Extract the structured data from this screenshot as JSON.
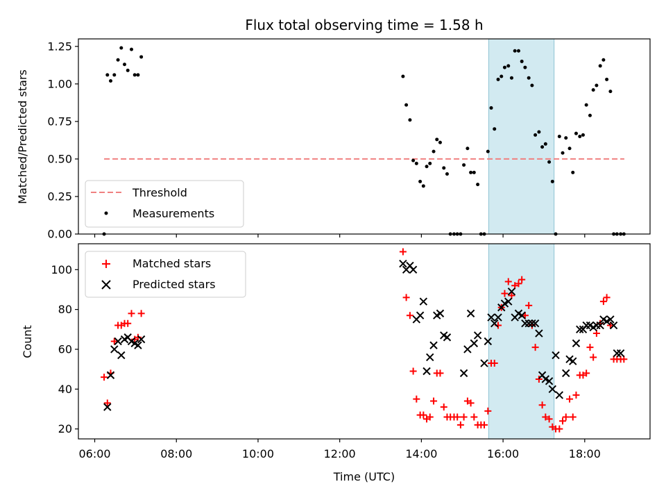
{
  "colors": {
    "threshold": "#f08080",
    "measurements": "#000000",
    "matched": "#ff0000",
    "predicted": "#000000",
    "highlight": "#add8e6"
  },
  "chart_data": [
    {
      "type": "scatter",
      "title": "Flux total observing time = 1.58 h",
      "xlabel": "",
      "ylabel": "Matched/Predicted stars",
      "xlim": [
        5.6,
        19.6
      ],
      "ylim": [
        0,
        1.3
      ],
      "x_ticks": [
        6,
        8,
        10,
        12,
        14,
        16,
        18
      ],
      "y_ticks": [
        0.0,
        0.25,
        0.5,
        0.75,
        1.0,
        1.25
      ],
      "y_tick_labels": [
        "0.00",
        "0.25",
        "0.50",
        "0.75",
        "1.00",
        "1.25"
      ],
      "highlight_span": [
        15.65,
        17.25
      ],
      "legend": {
        "placement": "lower-left",
        "entries": [
          "Threshold",
          "Measurements"
        ]
      },
      "threshold": {
        "name": "Threshold",
        "y": 0.5,
        "x_range": [
          6.23,
          18.97
        ]
      },
      "series": [
        {
          "name": "Measurements",
          "x": [
            6.23,
            6.31,
            6.39,
            6.48,
            6.57,
            6.65,
            6.73,
            6.81,
            6.9,
            6.98,
            7.06,
            7.14,
            13.55,
            13.63,
            13.72,
            13.8,
            13.88,
            13.97,
            14.05,
            14.13,
            14.21,
            14.3,
            14.38,
            14.46,
            14.55,
            14.63,
            14.71,
            14.8,
            14.88,
            14.96,
            15.04,
            15.13,
            15.21,
            15.29,
            15.38,
            15.46,
            15.54,
            15.63,
            15.71,
            15.79,
            15.88,
            15.96,
            16.04,
            16.13,
            16.21,
            16.29,
            16.38,
            16.46,
            16.54,
            16.63,
            16.71,
            16.79,
            16.88,
            16.96,
            17.04,
            17.13,
            17.21,
            17.29,
            17.38,
            17.46,
            17.54,
            17.63,
            17.71,
            17.79,
            17.88,
            17.96,
            18.04,
            18.13,
            18.21,
            18.29,
            18.38,
            18.46,
            18.54,
            18.63,
            18.71,
            18.79,
            18.88,
            18.96
          ],
          "y": [
            0.0,
            1.06,
            1.02,
            1.06,
            1.16,
            1.24,
            1.13,
            1.09,
            1.23,
            1.06,
            1.06,
            1.18,
            1.05,
            0.86,
            0.76,
            0.49,
            0.47,
            0.35,
            0.32,
            0.45,
            0.47,
            0.55,
            0.63,
            0.61,
            0.44,
            0.4,
            0.0,
            0.0,
            0.0,
            0.0,
            0.46,
            0.57,
            0.41,
            0.41,
            0.33,
            0.0,
            0.0,
            0.55,
            0.84,
            0.7,
            1.03,
            1.05,
            1.11,
            1.12,
            1.04,
            1.22,
            1.22,
            1.15,
            1.11,
            1.04,
            0.99,
            0.66,
            0.68,
            0.58,
            0.6,
            0.48,
            0.35,
            0.0,
            0.65,
            0.54,
            0.64,
            0.57,
            0.41,
            0.67,
            0.65,
            0.66,
            0.86,
            0.79,
            0.96,
            0.99,
            1.12,
            1.16,
            1.03,
            0.95,
            0.0,
            0.0,
            0.0,
            0.0
          ]
        }
      ]
    },
    {
      "type": "scatter",
      "title": "",
      "xlabel": "Time (UTC)",
      "ylabel": "Count",
      "xlim": [
        5.6,
        19.6
      ],
      "ylim": [
        15,
        113
      ],
      "x_ticks": [
        6,
        8,
        10,
        12,
        14,
        16,
        18
      ],
      "x_tick_labels": [
        "06:00",
        "08:00",
        "10:00",
        "12:00",
        "14:00",
        "16:00",
        "18:00"
      ],
      "y_ticks": [
        20,
        40,
        60,
        80,
        100
      ],
      "y_tick_labels": [
        "20",
        "40",
        "60",
        "80",
        "100"
      ],
      "highlight_span": [
        15.65,
        17.25
      ],
      "legend": {
        "placement": "upper-left",
        "entries": [
          "Matched stars",
          "Predicted stars"
        ]
      },
      "series": [
        {
          "name": "Matched stars",
          "marker": "plus",
          "x": [
            6.23,
            6.31,
            6.39,
            6.48,
            6.57,
            6.65,
            6.73,
            6.81,
            6.9,
            6.98,
            7.06,
            7.14,
            13.55,
            13.63,
            13.72,
            13.8,
            13.88,
            13.97,
            14.05,
            14.13,
            14.21,
            14.3,
            14.38,
            14.46,
            14.55,
            14.63,
            14.71,
            14.8,
            14.88,
            14.96,
            15.04,
            15.13,
            15.21,
            15.29,
            15.38,
            15.46,
            15.54,
            15.63,
            15.71,
            15.79,
            15.88,
            15.96,
            16.04,
            16.13,
            16.21,
            16.29,
            16.38,
            16.46,
            16.54,
            16.63,
            16.71,
            16.79,
            16.88,
            16.96,
            17.04,
            17.13,
            17.21,
            17.29,
            17.38,
            17.46,
            17.54,
            17.63,
            17.71,
            17.79,
            17.88,
            17.96,
            18.04,
            18.13,
            18.21,
            18.29,
            18.38,
            18.46,
            18.54,
            18.63,
            18.71,
            18.79,
            18.88,
            18.96
          ],
          "y": [
            46,
            33,
            48,
            64,
            72,
            72,
            73,
            73,
            78,
            65,
            66,
            78,
            109,
            86,
            77,
            49,
            35,
            27,
            27,
            25,
            26,
            34,
            48,
            48,
            31,
            26,
            26,
            26,
            26,
            22,
            26,
            34,
            33,
            26,
            22,
            22,
            22,
            29,
            53,
            53,
            72,
            81,
            88,
            94,
            87,
            92,
            93,
            95,
            77,
            82,
            72,
            61,
            45,
            32,
            26,
            25,
            21,
            20,
            20,
            24,
            26,
            35,
            26,
            37,
            47,
            47,
            48,
            61,
            56,
            68,
            73,
            84,
            86,
            72,
            55,
            55,
            55,
            55
          ]
        },
        {
          "name": "Predicted stars",
          "marker": "x",
          "x": [
            6.31,
            6.39,
            6.48,
            6.57,
            6.65,
            6.73,
            6.81,
            6.9,
            6.98,
            7.06,
            7.14,
            13.55,
            13.63,
            13.72,
            13.8,
            13.88,
            13.97,
            14.05,
            14.13,
            14.21,
            14.3,
            14.38,
            14.46,
            14.55,
            14.63,
            15.04,
            15.13,
            15.21,
            15.29,
            15.38,
            15.54,
            15.63,
            15.71,
            15.79,
            15.88,
            15.96,
            16.04,
            16.13,
            16.21,
            16.29,
            16.38,
            16.46,
            16.54,
            16.63,
            16.71,
            16.79,
            16.88,
            16.96,
            17.04,
            17.13,
            17.21,
            17.29,
            17.38,
            17.54,
            17.63,
            17.71,
            17.79,
            17.88,
            17.96,
            18.04,
            18.13,
            18.21,
            18.29,
            18.38,
            18.46,
            18.54,
            18.63,
            18.71,
            18.79,
            18.88
          ],
          "y": [
            31,
            47,
            60,
            64,
            57,
            65,
            66,
            64,
            63,
            62,
            65,
            103,
            100,
            102,
            100,
            75,
            77,
            84,
            49,
            56,
            62,
            77,
            78,
            67,
            66,
            48,
            60,
            78,
            63,
            67,
            53,
            64,
            76,
            73,
            76,
            81,
            83,
            84,
            89,
            76,
            78,
            77,
            73,
            73,
            73,
            73,
            68,
            47,
            45,
            44,
            40,
            57,
            37,
            48,
            55,
            54,
            63,
            70,
            70,
            72,
            72,
            71,
            72,
            72,
            75,
            74,
            75,
            72,
            58,
            58
          ]
        }
      ]
    }
  ]
}
